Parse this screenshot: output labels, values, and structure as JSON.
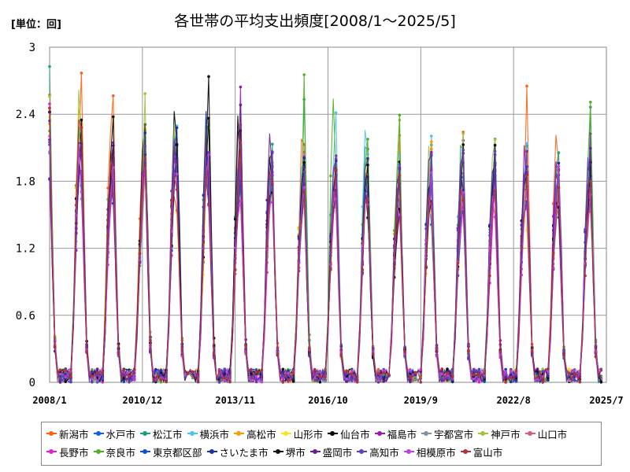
{
  "unit_label": "[単位：回]",
  "chart_data": {
    "type": "line",
    "title": "各世帯の平均支出頻度[2008/1～2025/5]",
    "y_ticks": [
      "0",
      "0.6",
      "1.2",
      "1.8",
      "2.4",
      "3"
    ],
    "ylim": [
      0,
      3
    ],
    "x_tick_labels": [
      "2008/1",
      "2010/12",
      "2013/11",
      "2016/10",
      "2019/9",
      "2022/8",
      "2025/7"
    ],
    "x_range": [
      "2008-01",
      "2025-07"
    ],
    "grid": "horizontal and vertical",
    "legend_placement": "bottom",
    "pattern_note": "seasonal spikes once per year peaking ~Dec-Jan, near zero in summer",
    "series": [
      {
        "name": "新潟市",
        "color": "#ff6010",
        "peaks": [
          2.58,
          2.72,
          2.53,
          2.3,
          2.25,
          2.0,
          2.2,
          2.14,
          2.0,
          1.9,
          1.7,
          2.1,
          1.9,
          2.0,
          1.75,
          2.44,
          1.9,
          1.6
        ]
      },
      {
        "name": "水戸市",
        "color": "#1060e0",
        "peaks": [
          2.2,
          1.9,
          1.8,
          2.2,
          1.8,
          1.9,
          1.9,
          1.7,
          1.8,
          1.6,
          1.7,
          1.7,
          1.6,
          1.7,
          1.8,
          1.7,
          1.6,
          2.0
        ]
      },
      {
        "name": "松江市",
        "color": "#20a070",
        "peaks": [
          2.5,
          2.3,
          2.1,
          2.3,
          2.05,
          2.0,
          2.1,
          1.9,
          2.48,
          2.14,
          2.0,
          2.0,
          2.2,
          2.0,
          2.0,
          1.9,
          1.85,
          2.27
        ]
      },
      {
        "name": "横浜市",
        "color": "#50c0f0",
        "peaks": [
          2.3,
          2.0,
          1.9,
          2.25,
          2.0,
          1.8,
          1.9,
          2.0,
          2.0,
          2.3,
          1.9,
          1.9,
          2.1,
          1.8,
          2.0,
          1.9,
          1.8,
          2.45
        ]
      },
      {
        "name": "高松市",
        "color": "#f0a000",
        "peaks": [
          2.4,
          2.1,
          2.0,
          2.2,
          1.9,
          1.9,
          2.0,
          1.9,
          1.9,
          1.8,
          1.8,
          1.8,
          1.9,
          1.7,
          1.8,
          1.8,
          1.7,
          1.9
        ]
      },
      {
        "name": "山形市",
        "color": "#ffe020",
        "peaks": [
          2.3,
          2.0,
          1.8,
          2.1,
          1.7,
          1.7,
          1.8,
          1.7,
          1.7,
          1.6,
          1.6,
          1.7,
          1.7,
          1.7,
          1.7,
          1.6,
          1.7,
          1.8
        ]
      },
      {
        "name": "仙台市",
        "color": "#000000",
        "peaks": [
          2.2,
          2.15,
          2.1,
          2.4,
          2.0,
          2.39,
          2.1,
          1.9,
          1.9,
          1.8,
          1.7,
          1.8,
          1.8,
          2.0,
          1.9,
          2.0,
          1.8,
          1.9
        ]
      },
      {
        "name": "福島市",
        "color": "#9a1ab0",
        "peaks": [
          2.1,
          2.0,
          1.9,
          2.1,
          2.1,
          1.9,
          2.35,
          1.8,
          1.8,
          1.9,
          1.9,
          1.8,
          1.9,
          1.9,
          2.34,
          2.0,
          1.9,
          2.0
        ]
      },
      {
        "name": "宇都宮市",
        "color": "#8090a0",
        "peaks": [
          2.2,
          1.9,
          1.8,
          2.0,
          1.9,
          1.8,
          1.8,
          1.7,
          1.8,
          1.7,
          1.7,
          1.7,
          1.8,
          1.7,
          1.8,
          1.8,
          1.7,
          1.8
        ]
      },
      {
        "name": "神戸市",
        "color": "#a0c040",
        "peaks": [
          2.56,
          2.0,
          1.9,
          2.72,
          1.9,
          2.0,
          1.9,
          1.9,
          1.9,
          1.8,
          1.9,
          2.1,
          1.9,
          2.1,
          1.9,
          2.0,
          1.9,
          2.0
        ]
      },
      {
        "name": "山口市",
        "color": "#d06070",
        "peaks": [
          2.3,
          2.0,
          1.8,
          2.1,
          1.8,
          1.7,
          1.8,
          1.7,
          1.8,
          1.7,
          1.6,
          1.7,
          1.7,
          1.7,
          1.7,
          1.7,
          1.6,
          1.7
        ]
      },
      {
        "name": "長野市",
        "color": "#e020d0",
        "peaks": [
          2.2,
          1.9,
          1.8,
          2.0,
          1.8,
          1.7,
          1.7,
          1.7,
          1.8,
          1.7,
          1.6,
          1.6,
          1.7,
          1.6,
          1.7,
          1.7,
          1.6,
          1.7
        ]
      },
      {
        "name": "奈良市",
        "color": "#50b020",
        "peaks": [
          2.5,
          2.3,
          2.0,
          2.2,
          2.3,
          2.0,
          2.0,
          1.9,
          2.5,
          2.0,
          2.07,
          2.1,
          2.0,
          2.09,
          2.0,
          2.0,
          1.9,
          2.2
        ]
      },
      {
        "name": "東京都区部",
        "color": "#1050d0",
        "peaks": [
          2.2,
          2.0,
          1.8,
          2.1,
          1.8,
          1.8,
          1.8,
          1.7,
          1.8,
          1.7,
          1.7,
          1.7,
          1.8,
          1.7,
          1.7,
          1.7,
          1.7,
          1.8
        ]
      },
      {
        "name": "さいたま市",
        "color": "#2030a0",
        "peaks": [
          2.1,
          1.9,
          1.8,
          2.4,
          2.41,
          1.8,
          2.0,
          1.8,
          1.9,
          2.0,
          1.8,
          2.0,
          1.9,
          2.0,
          2.1,
          2.0,
          2.0,
          1.9
        ]
      },
      {
        "name": "堺市",
        "color": "#101010",
        "peaks": [
          2.2,
          2.2,
          2.1,
          2.2,
          1.9,
          2.4,
          2.0,
          1.8,
          1.9,
          1.8,
          1.7,
          1.8,
          1.9,
          1.9,
          2.0,
          1.9,
          1.8,
          1.9
        ]
      },
      {
        "name": "盛岡市",
        "color": "#602090",
        "peaks": [
          2.1,
          2.1,
          1.9,
          2.1,
          2.0,
          1.8,
          2.36,
          1.8,
          1.9,
          1.8,
          1.8,
          1.8,
          1.9,
          1.9,
          2.1,
          1.9,
          1.8,
          1.9
        ]
      },
      {
        "name": "高知市",
        "color": "#6040c0",
        "peaks": [
          2.3,
          2.1,
          1.9,
          2.3,
          2.0,
          1.9,
          2.0,
          1.8,
          1.9,
          1.8,
          1.8,
          2.0,
          2.0,
          2.0,
          2.0,
          2.06,
          2.0,
          2.0
        ]
      },
      {
        "name": "相模原市",
        "color": "#c040e0",
        "peaks": [
          2.2,
          1.9,
          1.8,
          2.1,
          1.8,
          1.8,
          1.8,
          1.7,
          1.8,
          1.7,
          1.7,
          1.7,
          1.7,
          1.7,
          1.7,
          1.7,
          1.7,
          1.8
        ]
      },
      {
        "name": "富山市",
        "color": "#b03040",
        "peaks": [
          2.3,
          2.0,
          1.9,
          2.2,
          1.9,
          1.8,
          1.9,
          1.7,
          1.8,
          1.7,
          1.7,
          1.7,
          1.8,
          1.7,
          1.7,
          1.8,
          1.7,
          1.8
        ]
      }
    ]
  }
}
